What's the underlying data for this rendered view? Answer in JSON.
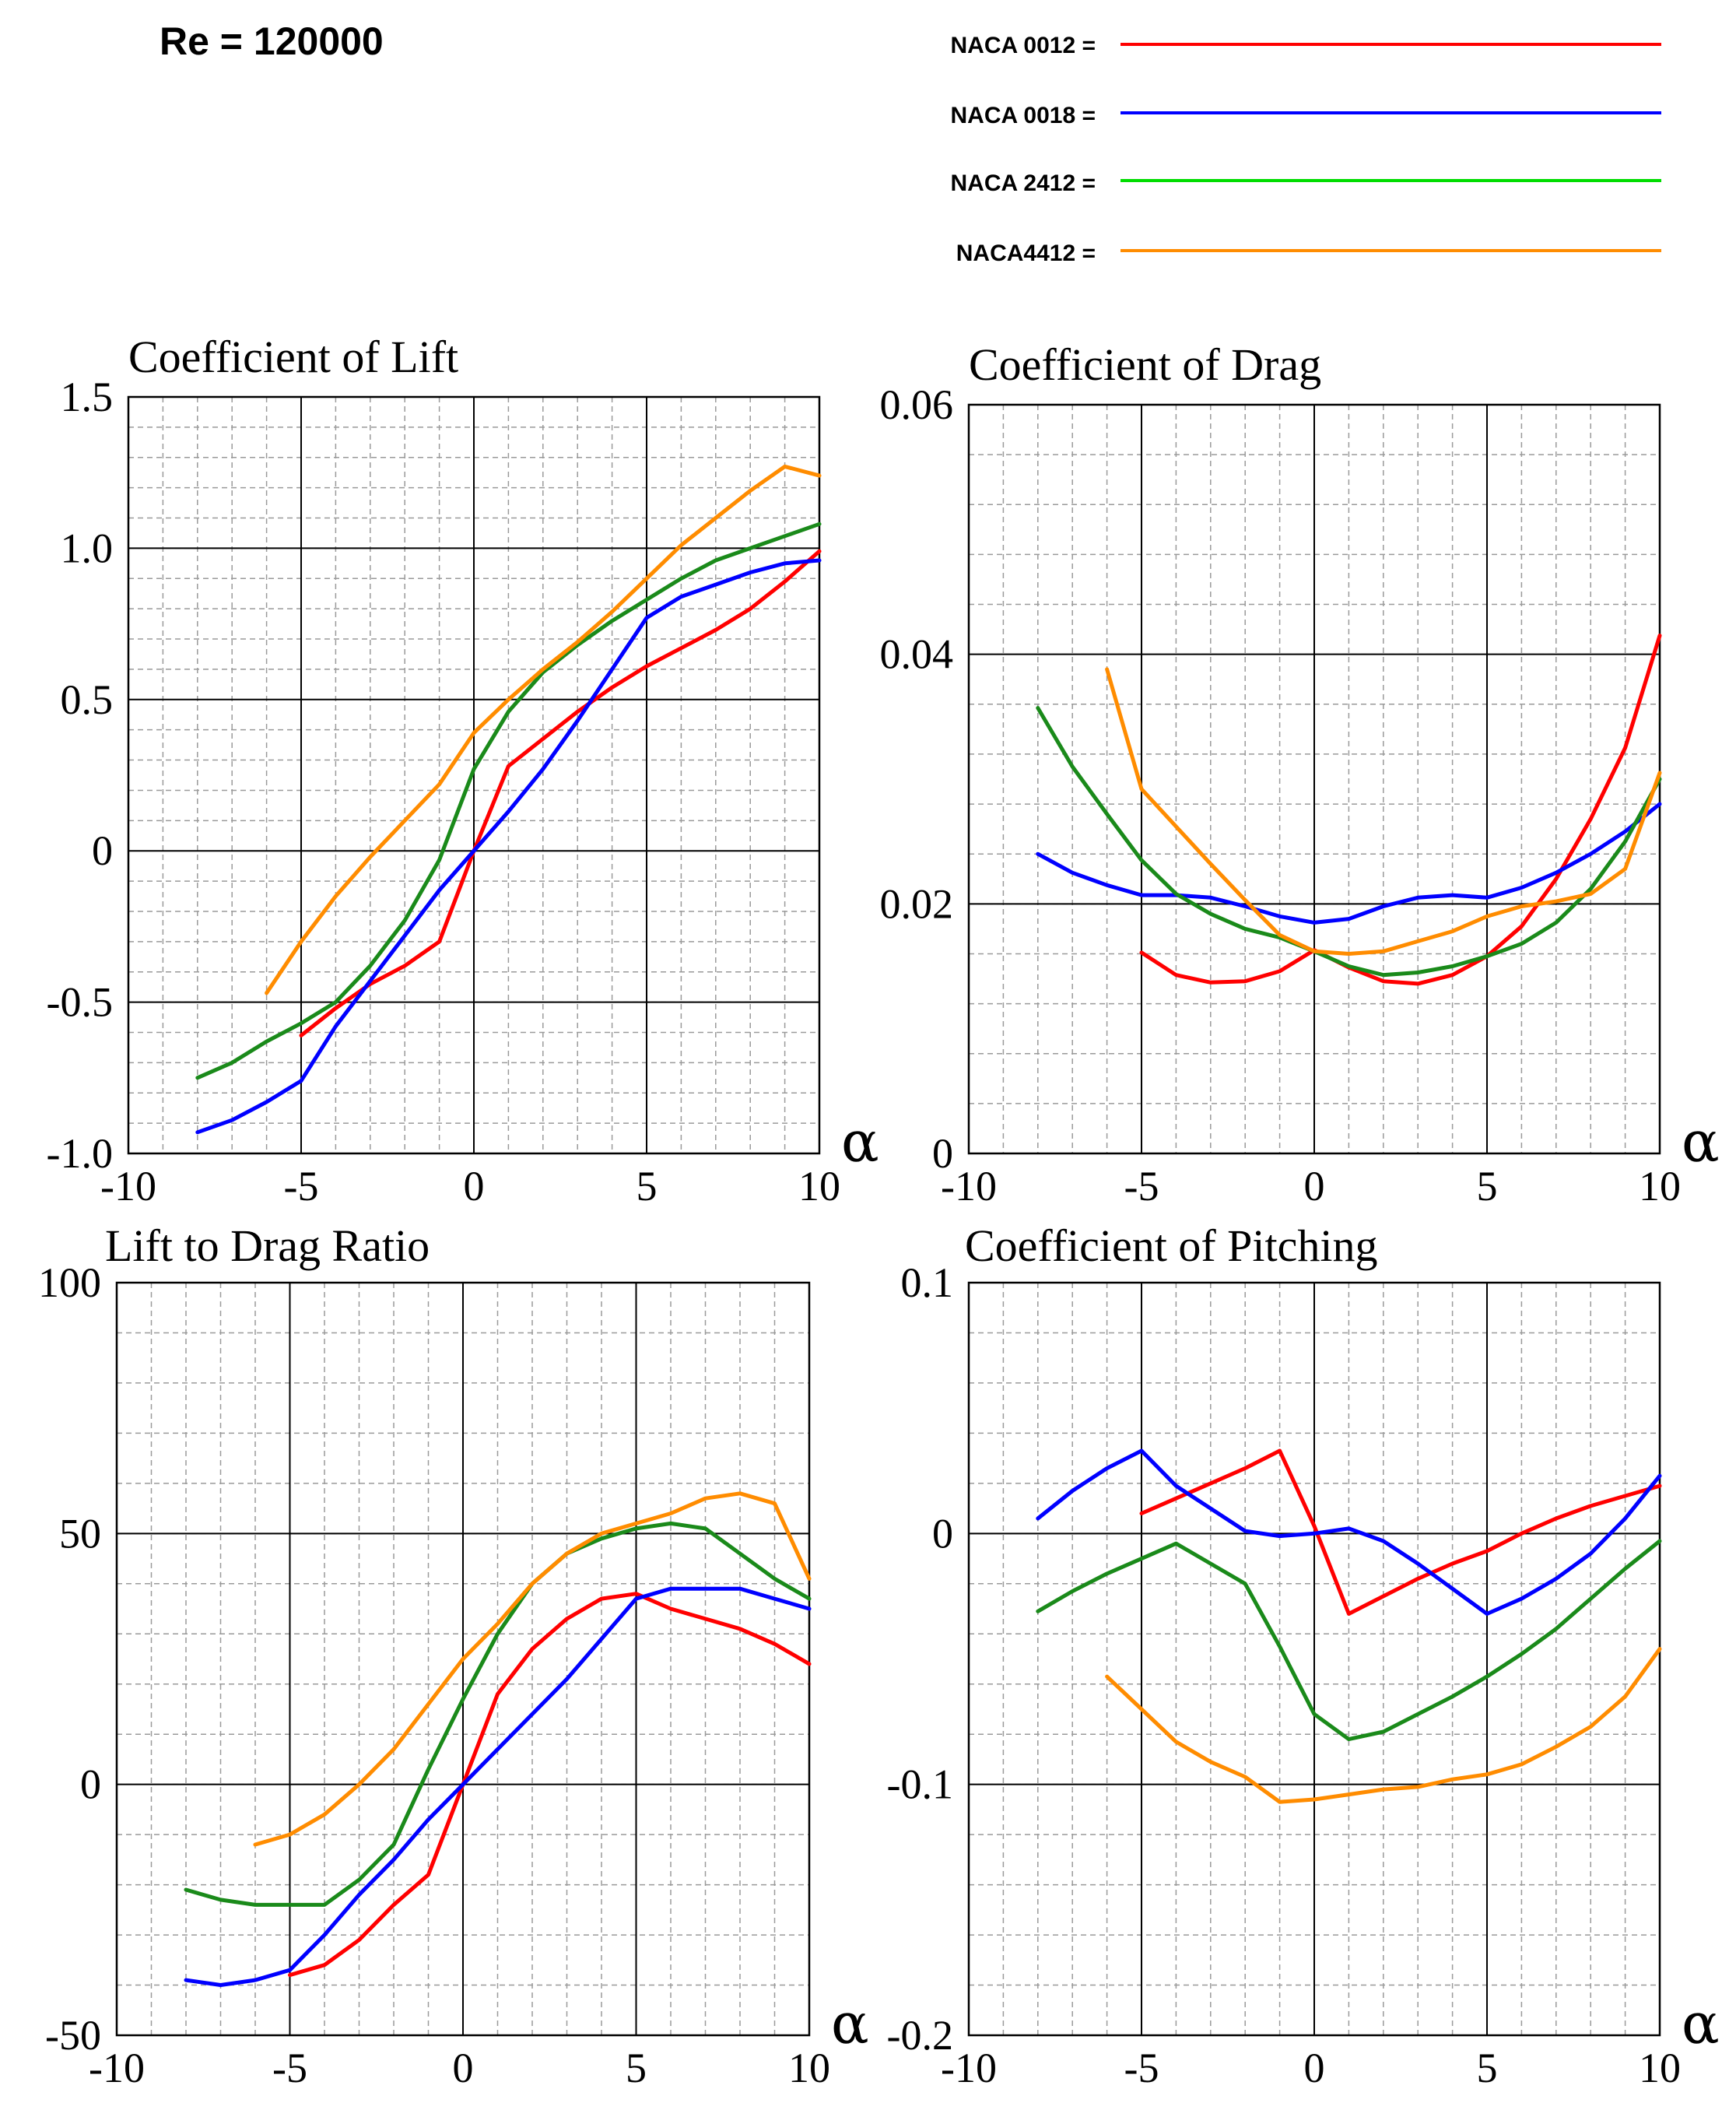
{
  "header": {
    "reynolds_label": "Re = 120000"
  },
  "legend": [
    {
      "label": "NACA 0012 =",
      "color": "#ff0000"
    },
    {
      "label": "NACA 0018 =",
      "color": "#0000ff"
    },
    {
      "label": "NACA 2412 =",
      "color": "#00dd00"
    },
    {
      "label": "NACA4412 =",
      "color": "#ff8c00"
    }
  ],
  "series_colors": {
    "NACA 0012": "#ff0000",
    "NACA 0018": "#0000ff",
    "NACA 2412": "#1a8a1a",
    "NACA4412": "#ff8c00"
  },
  "chart_data": [
    {
      "type": "line",
      "title": "Coefficient of Lift",
      "xlabel": "α",
      "ylabel": "",
      "xlim": [
        -10,
        10
      ],
      "ylim": [
        -1.0,
        1.5
      ],
      "xticks": [
        -10,
        -5,
        0,
        5,
        10
      ],
      "xtick_labels": [
        "-10",
        "-5",
        "0",
        "5",
        "10"
      ],
      "yticks": [
        -1.0,
        -0.5,
        0,
        0.5,
        1.0,
        1.5
      ],
      "ytick_labels": [
        "-1.0",
        "-0.5",
        "0",
        "0.5",
        "1.0",
        "1.5"
      ],
      "grid": true,
      "series": [
        {
          "name": "NACA 0012",
          "x": [
            -5,
            -4,
            -3,
            -2,
            -1,
            0,
            1,
            2,
            3,
            4,
            5,
            6,
            7,
            8,
            9,
            10
          ],
          "y": [
            -0.61,
            -0.52,
            -0.44,
            -0.38,
            -0.3,
            0.0,
            0.28,
            0.37,
            0.46,
            0.54,
            0.61,
            0.67,
            0.73,
            0.8,
            0.89,
            0.99
          ]
        },
        {
          "name": "NACA 0018",
          "x": [
            -8,
            -7,
            -6,
            -5,
            -4,
            -3,
            -2,
            -1,
            0,
            1,
            2,
            3,
            4,
            5,
            6,
            7,
            8,
            9,
            10
          ],
          "y": [
            -0.93,
            -0.89,
            -0.83,
            -0.76,
            -0.58,
            -0.43,
            -0.28,
            -0.13,
            0.0,
            0.13,
            0.27,
            0.43,
            0.6,
            0.77,
            0.84,
            0.88,
            0.92,
            0.95,
            0.96
          ]
        },
        {
          "name": "NACA 2412",
          "x": [
            -8,
            -7,
            -6,
            -5,
            -4,
            -3,
            -2,
            -1,
            0,
            1,
            2,
            3,
            4,
            5,
            6,
            7,
            8,
            9,
            10
          ],
          "y": [
            -0.75,
            -0.7,
            -0.63,
            -0.57,
            -0.5,
            -0.38,
            -0.23,
            -0.03,
            0.27,
            0.46,
            0.59,
            0.68,
            0.76,
            0.83,
            0.9,
            0.96,
            1.0,
            1.04,
            1.08
          ]
        },
        {
          "name": "NACA4412",
          "x": [
            -6,
            -5,
            -4,
            -3,
            -2,
            -1,
            0,
            1,
            2,
            3,
            4,
            5,
            6,
            7,
            8,
            9,
            10
          ],
          "y": [
            -0.47,
            -0.3,
            -0.15,
            -0.02,
            0.1,
            0.22,
            0.39,
            0.5,
            0.6,
            0.69,
            0.79,
            0.9,
            1.01,
            1.1,
            1.19,
            1.27,
            1.24
          ]
        }
      ]
    },
    {
      "type": "line",
      "title": "Coefficient of Drag",
      "xlabel": "α",
      "ylabel": "",
      "xlim": [
        -10,
        10
      ],
      "ylim": [
        0,
        0.06
      ],
      "xticks": [
        -10,
        -5,
        0,
        5,
        10
      ],
      "xtick_labels": [
        "-10",
        "-5",
        "0",
        "5",
        "10"
      ],
      "yticks": [
        0,
        0.02,
        0.04,
        0.06
      ],
      "ytick_labels": [
        "0",
        "0.02",
        "0.04",
        "0.06"
      ],
      "grid": true,
      "series": [
        {
          "name": "NACA 0012",
          "x": [
            -5,
            -4,
            -3,
            -2,
            -1,
            0,
            1,
            2,
            3,
            4,
            5,
            6,
            7,
            8,
            9,
            10
          ],
          "y": [
            0.0161,
            0.0143,
            0.0137,
            0.0138,
            0.0146,
            0.0163,
            0.0149,
            0.0138,
            0.0136,
            0.0143,
            0.0158,
            0.0182,
            0.022,
            0.0268,
            0.0325,
            0.0415
          ]
        },
        {
          "name": "NACA 0018",
          "x": [
            -8,
            -7,
            -6,
            -5,
            -4,
            -3,
            -2,
            -1,
            0,
            1,
            2,
            3,
            4,
            5,
            6,
            7,
            8,
            9,
            10
          ],
          "y": [
            0.024,
            0.0225,
            0.0215,
            0.0207,
            0.0207,
            0.0205,
            0.0198,
            0.019,
            0.0185,
            0.0188,
            0.0198,
            0.0205,
            0.0207,
            0.0205,
            0.0213,
            0.0225,
            0.024,
            0.0258,
            0.028
          ]
        },
        {
          "name": "NACA 2412",
          "x": [
            -8,
            -7,
            -6,
            -5,
            -4,
            -3,
            -2,
            -1,
            0,
            1,
            2,
            3,
            4,
            5,
            6,
            7,
            8,
            9,
            10
          ],
          "y": [
            0.0357,
            0.031,
            0.0272,
            0.0235,
            0.0208,
            0.0192,
            0.018,
            0.0173,
            0.0162,
            0.015,
            0.0143,
            0.0145,
            0.015,
            0.0158,
            0.0168,
            0.0185,
            0.0212,
            0.025,
            0.03
          ]
        },
        {
          "name": "NACA4412",
          "x": [
            -6,
            -5,
            -4,
            -3,
            -2,
            -1,
            0,
            1,
            2,
            3,
            4,
            5,
            6,
            7,
            8,
            9,
            10
          ],
          "y": [
            0.0388,
            0.0292,
            0.0262,
            0.0232,
            0.0203,
            0.0175,
            0.0162,
            0.016,
            0.0162,
            0.017,
            0.0178,
            0.019,
            0.0198,
            0.0202,
            0.0208,
            0.0228,
            0.0305
          ]
        }
      ]
    },
    {
      "type": "line",
      "title": "Lift to Drag Ratio",
      "xlabel": "α",
      "ylabel": "",
      "xlim": [
        -10,
        10
      ],
      "ylim": [
        -50,
        100
      ],
      "xticks": [
        -10,
        -5,
        0,
        5,
        10
      ],
      "xtick_labels": [
        "-10",
        "-5",
        "0",
        "5",
        "10"
      ],
      "yticks": [
        -50,
        0,
        50,
        100
      ],
      "ytick_labels": [
        "-50",
        "0",
        "50",
        "100"
      ],
      "grid": true,
      "series": [
        {
          "name": "NACA 0012",
          "x": [
            -5,
            -4,
            -3,
            -2,
            -1,
            0,
            1,
            2,
            3,
            4,
            5,
            6,
            7,
            8,
            9,
            10
          ],
          "y": [
            -38,
            -36,
            -31,
            -24,
            -18,
            0,
            18,
            27,
            33,
            37,
            38,
            35,
            33,
            31,
            28,
            24
          ]
        },
        {
          "name": "NACA 0018",
          "x": [
            -8,
            -7,
            -6,
            -5,
            -4,
            -3,
            -2,
            -1,
            0,
            1,
            2,
            3,
            4,
            5,
            6,
            7,
            8,
            9,
            10
          ],
          "y": [
            -39,
            -40,
            -39,
            -37,
            -30,
            -22,
            -15,
            -7,
            0,
            7,
            14,
            21,
            29,
            37,
            39,
            39,
            39,
            37,
            35
          ]
        },
        {
          "name": "NACA 2412",
          "x": [
            -8,
            -7,
            -6,
            -5,
            -4,
            -3,
            -2,
            -1,
            0,
            1,
            2,
            3,
            4,
            5,
            6,
            7,
            8,
            9,
            10
          ],
          "y": [
            -21,
            -23,
            -24,
            -24,
            -24,
            -19,
            -12,
            3,
            17,
            30,
            40,
            46,
            49,
            51,
            52,
            51,
            46,
            41,
            37
          ]
        },
        {
          "name": "NACA4412",
          "x": [
            -6,
            -5,
            -4,
            -3,
            -2,
            -1,
            0,
            1,
            2,
            3,
            4,
            5,
            6,
            7,
            8,
            9,
            10
          ],
          "y": [
            -12,
            -10,
            -6,
            0,
            7,
            16,
            25,
            32,
            40,
            46,
            50,
            52,
            54,
            57,
            58,
            56,
            41
          ]
        }
      ]
    },
    {
      "type": "line",
      "title": "Coefficient of Pitching",
      "xlabel": "α",
      "ylabel": "",
      "xlim": [
        -10,
        10
      ],
      "ylim": [
        -0.2,
        0.1
      ],
      "xticks": [
        -10,
        -5,
        0,
        5,
        10
      ],
      "xtick_labels": [
        "-10",
        "-5",
        "0",
        "5",
        "10"
      ],
      "yticks": [
        -0.2,
        -0.1,
        0,
        0.1
      ],
      "ytick_labels": [
        "-0.2",
        "-0.1",
        "0",
        "0.1"
      ],
      "grid": true,
      "series": [
        {
          "name": "NACA 0012",
          "x": [
            -5,
            -4,
            -3,
            -2,
            -1,
            0,
            1,
            2,
            3,
            4,
            5,
            6,
            7,
            8,
            9,
            10
          ],
          "y": [
            0.008,
            0.014,
            0.02,
            0.026,
            0.033,
            0.003,
            -0.032,
            -0.025,
            -0.018,
            -0.012,
            -0.007,
            0.0,
            0.006,
            0.011,
            0.015,
            0.019
          ]
        },
        {
          "name": "NACA 0018",
          "x": [
            -8,
            -7,
            -6,
            -5,
            -4,
            -3,
            -2,
            -1,
            0,
            1,
            2,
            3,
            4,
            5,
            6,
            7,
            8,
            9,
            10
          ],
          "y": [
            0.006,
            0.017,
            0.026,
            0.033,
            0.019,
            0.01,
            0.001,
            -0.001,
            0.0,
            0.002,
            -0.003,
            -0.012,
            -0.022,
            -0.032,
            -0.026,
            -0.018,
            -0.008,
            0.006,
            0.023
          ]
        },
        {
          "name": "NACA 2412",
          "x": [
            -8,
            -7,
            -6,
            -5,
            -4,
            -3,
            -2,
            -1,
            0,
            1,
            2,
            3,
            4,
            5,
            6,
            7,
            8,
            9,
            10
          ],
          "y": [
            -0.031,
            -0.023,
            -0.016,
            -0.01,
            -0.004,
            -0.012,
            -0.02,
            -0.045,
            -0.072,
            -0.082,
            -0.079,
            -0.072,
            -0.065,
            -0.057,
            -0.048,
            -0.038,
            -0.026,
            -0.014,
            -0.003
          ]
        },
        {
          "name": "NACA4412",
          "x": [
            -6,
            -5,
            -4,
            -3,
            -2,
            -1,
            0,
            1,
            2,
            3,
            4,
            5,
            6,
            7,
            8,
            9,
            10
          ],
          "y": [
            -0.057,
            -0.07,
            -0.083,
            -0.091,
            -0.097,
            -0.107,
            -0.106,
            -0.104,
            -0.102,
            -0.101,
            -0.098,
            -0.096,
            -0.092,
            -0.085,
            -0.077,
            -0.065,
            -0.046
          ]
        }
      ]
    }
  ]
}
